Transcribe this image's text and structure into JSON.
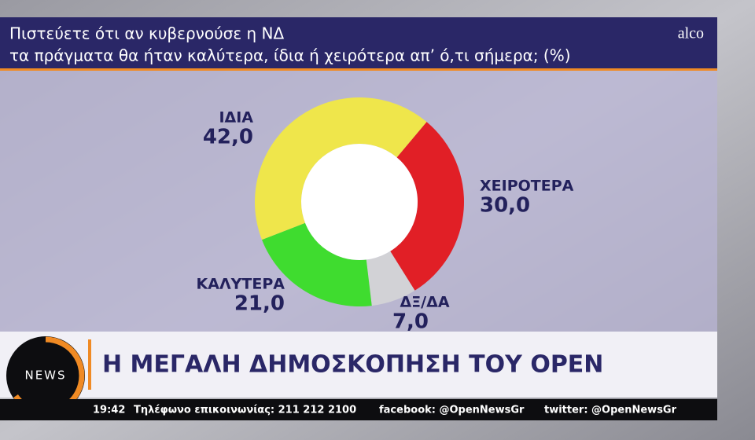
{
  "brand": "alco",
  "chart_data": {
    "type": "donut",
    "title": [
      "Πιστεύετε ότι αν κυβερνούσε η ΝΔ",
      "τα πράγματα θα ήταν καλύτερα, ίδια ή χειρότερα απ’ ό,τι σήμερα; (%)"
    ],
    "categories": [
      "ΧΕΙΡΟΤΕΡΑ",
      "ΔΞ/ΔΑ",
      "ΚΑΛΥΤΕΡΑ",
      "ΙΔΙΑ"
    ],
    "values": [
      30,
      7,
      21,
      42
    ],
    "value_labels": [
      "30,0",
      "7,0",
      "21,0",
      "42,0"
    ],
    "colors": [
      "#e11f26",
      "#d2d2d6",
      "#3fdc2f",
      "#efe64b"
    ]
  },
  "banner": {
    "logo": "NEWS",
    "headline": "Η ΜΕΓΑΛΗ ΔΗΜΟΣΚΟΠΗΣΗ ΤΟΥ OPEN"
  },
  "ticker": {
    "time": "19:42",
    "phone": "Τηλέφωνο επικοινωνίας: 211 212 2100",
    "facebook": "facebook: @OpenNewsGr",
    "twitter": "twitter: @OpenNewsGr"
  }
}
